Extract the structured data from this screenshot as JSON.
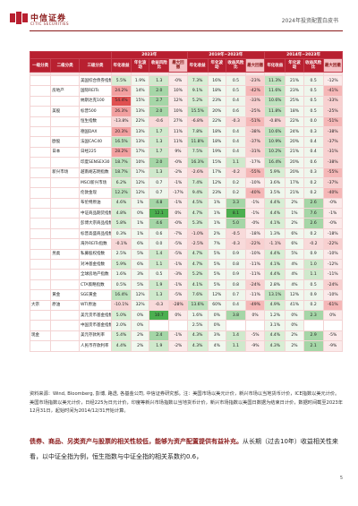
{
  "header": {
    "logo_cn": "中信证券",
    "logo_en": "CITIC SECURITIES",
    "report_title": "2024年投资配置白皮书"
  },
  "table": {
    "group_headers": [
      "2023年",
      "2019年~2023年",
      "2014年~2023年"
    ],
    "col_headers": [
      "一级分类",
      "二级分类",
      "三级分类",
      "年化收益",
      "年化波动",
      "收益风险比",
      "最大回撤",
      "年化收益",
      "年化波动",
      "收益风险比",
      "最大回撤",
      "年化收益",
      "年化波动",
      "收益风险比",
      "最大回撤"
    ],
    "row_labels": [
      [
        "",
        "",
        "国证美元综合指数"
      ],
      [
        "",
        "房地产指数",
        "",
        "",
        "",
        "",
        "",
        "",
        "",
        "",
        "",
        "",
        "",
        ""
      ],
      [
        "",
        "",
        "纳斯达克100"
      ],
      [
        "",
        "美股",
        "标普500"
      ],
      [
        "",
        "",
        "恒生指数"
      ],
      [
        "",
        "",
        "德国DAX"
      ],
      [
        "",
        "欧股",
        "法国CAC40"
      ],
      [
        "",
        "日本",
        "日经225"
      ],
      [
        "",
        "",
        "印度SENSEX30"
      ],
      [
        "",
        "新兴市场",
        "越南胡志明指数"
      ],
      [
        "",
        "",
        "MSCI新兴市场"
      ],
      [
        "",
        "",
        "伦敦金现"
      ],
      [
        "",
        "",
        "布伦特原油"
      ],
      [
        "",
        "",
        "中证商品期货指数"
      ],
      [
        "",
        "",
        "彭博大宗商品指数"
      ],
      [
        "",
        "",
        "标普高盛商品指数"
      ],
      [
        "",
        "",
        "海外REITs指数"
      ],
      [
        "",
        "另类",
        "私募股权指数"
      ],
      [
        "",
        "",
        "对冲基金指数"
      ],
      [
        "",
        "",
        "全球房地产指数"
      ],
      [
        "",
        "",
        "CTA策略指数"
      ],
      [
        "",
        "",
        "天然气"
      ],
      [
        "",
        "现金",
        "货币基金指数"
      ],
      [
        "",
        "",
        "美元存款"
      ],
      [
        "",
        "",
        "美国国债"
      ],
      [
        "",
        "",
        "全球综合债券指数"
      ],
      [
        "",
        "",
        "美国高收益债指数"
      ]
    ],
    "rows": [
      [
        "",
        "",
        "美国综合债券指数",
        "5.5%",
        "1.9%",
        "1.3",
        "-0%",
        "7.3%",
        "16%",
        "0.5",
        "-23%",
        "11.3%",
        "21%",
        "0.5",
        "-12%"
      ],
      [
        "",
        "房地产",
        "国际REITs",
        "24.2%",
        "14%",
        "2.0",
        "10%",
        "9.1%",
        "18%",
        "0.5",
        "-42%",
        "11.6%",
        "23%",
        "0.5",
        "-41%"
      ],
      [
        "",
        "",
        "纳斯达克100",
        "54.4%",
        "15%",
        "2.7",
        "12%",
        "5.2%",
        "23%",
        "0.4",
        "-33%",
        "10.6%",
        "25%",
        "0.5",
        "-33%"
      ],
      [
        "",
        "美股",
        "标普500",
        "26.3%",
        "13%",
        "2.0",
        "10%",
        "15.5%",
        "20%",
        "0.6",
        "-25%",
        "11.8%",
        "18%",
        "0.5",
        "-25%"
      ],
      [
        "",
        "",
        "恒生指数",
        "-13.8%",
        "22%",
        "-0.6",
        "27%",
        "-6.8%",
        "22%",
        "-0.3",
        "-51%",
        "-0.8%",
        "22%",
        "0.0",
        "-51%"
      ],
      [
        "",
        "",
        "德国DAX",
        "20.3%",
        "13%",
        "1.7",
        "11%",
        "7.8%",
        "18%",
        "0.4",
        "-38%",
        "10.6%",
        "24%",
        "0.3",
        "-38%"
      ],
      [
        "",
        "欧股",
        "法国CAC40",
        "16.5%",
        "13%",
        "1.3",
        "11%",
        "11.8%",
        "18%",
        "0.4",
        "-37%",
        "10.9%",
        "20%",
        "0.4",
        "-37%"
      ],
      [
        "",
        "日本",
        "日经225",
        "28.2%",
        "17%",
        "1.7",
        "9%",
        "7.5%",
        "19%",
        "0.4",
        "-31%",
        "10.2%",
        "21%",
        "0.4",
        "-31%"
      ],
      [
        "",
        "",
        "印度SENSEX30",
        "18.7%",
        "10%",
        "2.0",
        "-0%",
        "16.3%",
        "15%",
        "1.1",
        "-17%",
        "16.4%",
        "20%",
        "0.6",
        "-38%"
      ],
      [
        "",
        "新兴市场",
        "越南胡志明指数",
        "18.7%",
        "17%",
        "1.3",
        "-2%",
        "-2.6%",
        "17%",
        "-0.2",
        "-55%",
        "5.9%",
        "20%",
        "0.3",
        "-55%"
      ],
      [
        "",
        "",
        "MSCI新兴市场",
        "6.2%",
        "12%",
        "0.7",
        "-1%",
        "7.4%",
        "12%",
        "0.2",
        "-10%",
        "3.6%",
        "17%",
        "0.2",
        "-37%"
      ],
      [
        "",
        "",
        "伦敦金现",
        "12.2%",
        "12%",
        "0.7",
        "-17%",
        "9.4%",
        "23%",
        "0.2",
        "-40%",
        "3.5%",
        "21%",
        "0.2",
        "-40%"
      ],
      [
        "",
        "",
        "布伦特原油",
        "4.6%",
        "1%",
        "4.8",
        "-1%",
        "4.5%",
        "1%",
        "3.3",
        "-1%",
        "4.4%",
        "2%",
        "2.6",
        "-0%"
      ],
      [
        "",
        "",
        "中证商品期货指数",
        "4.8%",
        "0%",
        "12.1",
        "0%",
        "4.7%",
        "1%",
        "8.1",
        "-1%",
        "4.4%",
        "1%",
        "7.6",
        "-1%"
      ],
      [
        "",
        "",
        "彭博大宗商品指数",
        "5.8%",
        "1%",
        "4.6",
        "-0%",
        "5.3%",
        "1%",
        "5.0",
        "-0%",
        "4.1%",
        "2%",
        "2.6",
        "-0%"
      ],
      [
        "",
        "",
        "标普高盛商品指数",
        "0.3%",
        "1%",
        "0.6",
        "-7%",
        "-1.0%",
        "2%",
        "-0.5",
        "-18%",
        "1.3%",
        "6%",
        "0.2",
        "-18%"
      ],
      [
        "",
        "",
        "海外REITs指数",
        "-0.1%",
        "6%",
        "0.0",
        "-5%",
        "-2.5%",
        "7%",
        "-0.3",
        "-22%",
        "-1.1%",
        "6%",
        "-0.2",
        "-22%"
      ],
      [
        "",
        "另类",
        "私募股权指数",
        "2.5%",
        "5%",
        "1.4",
        "-5%",
        "4.7%",
        "5%",
        "0.9",
        "-10%",
        "4.4%",
        "5%",
        "0.9",
        "-10%"
      ],
      [
        "",
        "",
        "对冲基金指数",
        "5.9%",
        "6%",
        "1.1",
        "-1%",
        "4.7%",
        "5%",
        "0.8",
        "-11%",
        "4.1%",
        "4%",
        "1.0",
        "-12%"
      ],
      [
        "",
        "",
        "全球房地产指数",
        "1.6%",
        "3%",
        "0.5",
        "-3%",
        "5.2%",
        "5%",
        "0.9",
        "-11%",
        "4.4%",
        "4%",
        "1.1",
        "-11%"
      ],
      [
        "",
        "",
        "CTA策略指数",
        "0.5%",
        "5%",
        "1.9",
        "-1%",
        "4.1%",
        "5%",
        "0.8",
        "-24%",
        "2.8%",
        "4%",
        "0.5",
        "-24%"
      ],
      [
        "",
        "黄金",
        "SGE黄金",
        "16.4%",
        "12%",
        "1.3",
        "-5%",
        "7.6%",
        "12%",
        "0.7",
        "-11%",
        "13.1%",
        "12%",
        "0.9",
        "-10%"
      ],
      [
        "大宗",
        "原油",
        "WTI原油",
        "-10.1%",
        "32%",
        "-0.3",
        "-28%",
        "13.6%",
        "60%",
        "0.4",
        "-49%",
        "4.9%",
        "41%",
        "0.2",
        "-61%"
      ],
      [
        "",
        "",
        "美元货币基金指数",
        "5.0%",
        "0%",
        "10.7",
        "0%",
        "1.6%",
        "0%",
        "3.8",
        "0%",
        "1.2%",
        "0%",
        "2.3",
        "0%"
      ],
      [
        "",
        "",
        "中国货币基金指数",
        "2.0%",
        "0%",
        "",
        "",
        "2.5%",
        "0%",
        "",
        "",
        "3.1%",
        "0%",
        "",
        ""
      ],
      [
        "现金",
        "",
        "美元存款利率",
        "5.4%",
        "2%",
        "2.4",
        "-1%",
        "4.3%",
        "3%",
        "1.4",
        "-5%",
        "4.4%",
        "2%",
        "2.9",
        "-5%"
      ],
      [
        "",
        "",
        "人民币存款利率",
        "4.4%",
        "2%",
        "1.9",
        "-2%",
        "4.3%",
        "4%",
        "1.1",
        "-9%",
        "4.3%",
        "2%",
        "2.1",
        "-9%"
      ]
    ],
    "colored_cells": {}
  },
  "source_note": "资料来源：Wind, Bloomberg, 彭博, 路透, 各基金公司, 中信证券研究部。注：美国市场以美元计价，新兴市场以当地货币计价，ICE指数以美元计价。美国市场指数以美元计价，日经225为日元计价，印度等新兴市场指数以当地货币计价，新兴市场指数以美国日数据为结束日计价，数据时间截至2023年12月31日，起始时间为2014/12/31开始计算。",
  "paragraph_bold": "债券、商品、另类资产与股票的相关性较低，能够为资产配置提供有益补充。",
  "paragraph_rest": "从长期（过去10年）收益相关性来看，以中证全指为例，恒生指数与中证全指的相关系数约0.6，",
  "page_number": "5"
}
